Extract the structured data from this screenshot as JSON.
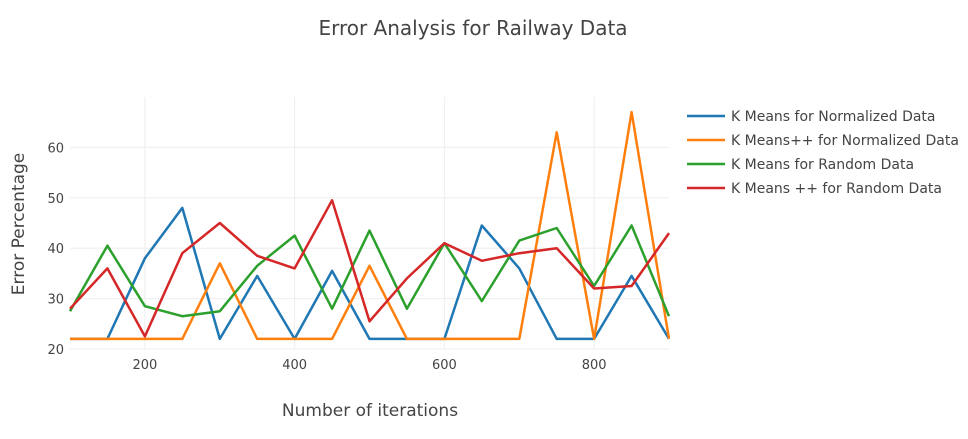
{
  "chart_data": {
    "type": "line",
    "title": "Error Analysis for Railway Data",
    "xlabel": "Number of iterations",
    "ylabel": "Error Percentage",
    "xlim": [
      100,
      900
    ],
    "ylim": [
      20,
      70
    ],
    "xticks": [
      200,
      400,
      600,
      800
    ],
    "yticks": [
      20,
      30,
      40,
      50,
      60
    ],
    "grid": true,
    "legend_position": "top-right",
    "x": [
      100,
      150,
      200,
      250,
      300,
      350,
      400,
      450,
      500,
      550,
      600,
      650,
      700,
      750,
      800,
      850,
      900
    ],
    "series": [
      {
        "name": "K Means for Normalized Data",
        "color": "#1f77b4",
        "values": [
          22,
          22,
          38,
          48,
          22,
          34.5,
          22,
          35.5,
          22,
          22,
          22,
          44.5,
          36,
          22,
          22,
          34.5,
          22
        ]
      },
      {
        "name": "K Means++ for Normalized Data",
        "color": "#ff7f0e",
        "values": [
          22,
          22,
          22,
          22,
          37,
          22,
          22,
          22,
          36.5,
          22,
          22,
          22,
          22,
          63,
          22,
          67,
          22
        ]
      },
      {
        "name": "K Means for Random Data",
        "color": "#2ca02c",
        "values": [
          27.5,
          40.5,
          28.5,
          26.5,
          27.5,
          36.5,
          42.5,
          28,
          43.5,
          28,
          41,
          29.5,
          41.5,
          44,
          32.5,
          44.5,
          26.5
        ]
      },
      {
        "name": "K Means ++ for Random Data",
        "color": "#d62728",
        "values": [
          28,
          36,
          22.5,
          39,
          45,
          38.5,
          36,
          49.5,
          25.5,
          34,
          41,
          37.5,
          39,
          40,
          32,
          32.5,
          43
        ]
      }
    ]
  }
}
